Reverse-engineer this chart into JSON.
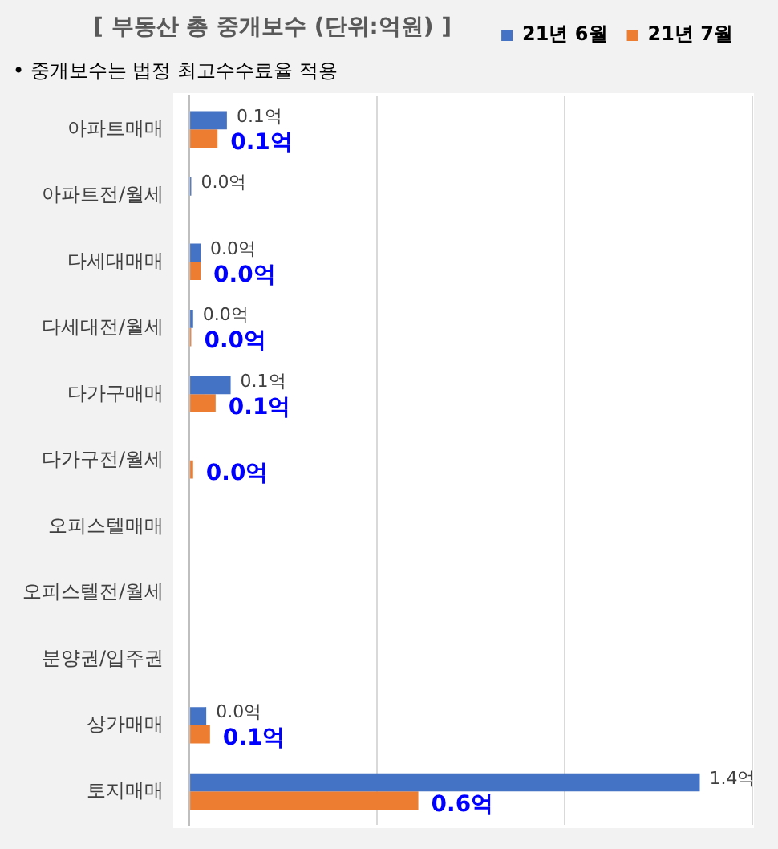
{
  "chart_data": {
    "type": "bar",
    "orientation": "horizontal",
    "title": "[ 부동산 총 중개보수 (단위:억원) ]",
    "subtitle": "• 중개보수는 법정 최고수수료율 적용",
    "categories": [
      "아파트매매",
      "아파트전/월세",
      "다세대매매",
      "다세대전/월세",
      "다가구매매",
      "다가구전/월세",
      "오피스텔매매",
      "오피스텔전/월세",
      "분양권/입주권",
      "상가매매",
      "토지매매"
    ],
    "series": [
      {
        "name": "21년 6월",
        "color": "#4472c4",
        "values": [
          0.1,
          0.005,
          0.03,
          0.01,
          0.11,
          null,
          null,
          null,
          null,
          0.045,
          1.36
        ],
        "value_labels": [
          "0.1억",
          "0.0억",
          "0.0억",
          "0.0억",
          "0.1억",
          null,
          null,
          null,
          null,
          "0.0억",
          "1.4억"
        ]
      },
      {
        "name": "21년 7월",
        "color": "#ed7d31",
        "values": [
          0.075,
          null,
          0.03,
          0.005,
          0.07,
          0.01,
          null,
          null,
          null,
          0.055,
          0.61
        ],
        "value_labels": [
          "0.1억",
          null,
          "0.0억",
          "0.0억",
          "0.1억",
          "0.0억",
          null,
          null,
          null,
          "0.1억",
          "0.6억"
        ]
      }
    ],
    "xlim": [
      0,
      1.5
    ],
    "xticks": [
      {
        "value": 0,
        "label": null
      },
      {
        "value": 0.5,
        "label": null
      },
      {
        "value": 1,
        "label": null
      },
      {
        "value": 1.5,
        "label": null
      }
    ],
    "tick_labels": "y",
    "grid": "x",
    "legend": "top right"
  }
}
